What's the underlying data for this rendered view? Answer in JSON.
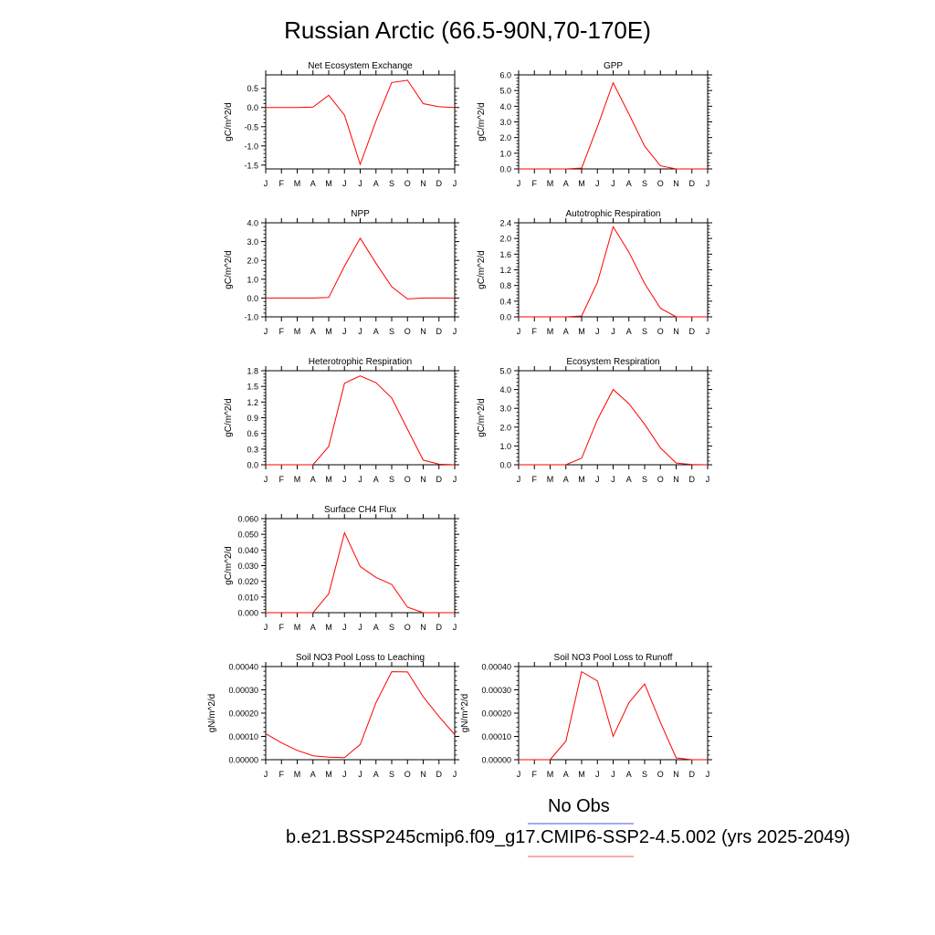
{
  "title": "Russian Arctic (66.5-90N,70-170E)",
  "legend": [
    {
      "label": "No Obs",
      "color": "#5050ff"
    },
    {
      "label": "b.e21.BSSP245cmip6.f09_g17.CMIP6-SSP2-4.5.002 (yrs 2025-2049)",
      "color": "#ff5050"
    }
  ],
  "series_color": "#ff0000",
  "month_labels": [
    "J",
    "F",
    "M",
    "A",
    "M",
    "J",
    "J",
    "A",
    "S",
    "O",
    "N",
    "D",
    "J"
  ],
  "chart_data": [
    {
      "type": "line",
      "title": "Net Ecosystem Exchange",
      "ylabel": "gC/m^2/d",
      "ylim": [
        -1.6,
        0.85
      ],
      "yticks": [
        -1.5,
        -1.0,
        -0.5,
        0.0,
        0.5
      ],
      "ytick_labels": [
        "-1.5",
        "-1.0",
        "-0.5",
        "0.0",
        "0.5"
      ],
      "values": [
        0.0,
        0.0,
        0.0,
        0.01,
        0.32,
        -0.2,
        -1.48,
        -0.35,
        0.65,
        0.71,
        0.1,
        0.02,
        0.0
      ]
    },
    {
      "type": "line",
      "title": "GPP",
      "ylabel": "gC/m^2/d",
      "ylim": [
        0.0,
        6.0
      ],
      "yticks": [
        0.0,
        1.0,
        2.0,
        3.0,
        4.0,
        5.0,
        6.0
      ],
      "ytick_labels": [
        "0.0",
        "1.0",
        "2.0",
        "3.0",
        "4.0",
        "5.0",
        "6.0"
      ],
      "values": [
        0.0,
        0.0,
        0.0,
        0.0,
        0.05,
        2.7,
        5.5,
        3.5,
        1.45,
        0.2,
        0.0,
        0.0,
        0.0
      ]
    },
    {
      "type": "line",
      "title": "NPP",
      "ylabel": "gC/m^2/d",
      "ylim": [
        -1.0,
        4.0
      ],
      "yticks": [
        -1.0,
        0.0,
        1.0,
        2.0,
        3.0,
        4.0
      ],
      "ytick_labels": [
        "-1.0",
        "0.0",
        "1.0",
        "2.0",
        "3.0",
        "4.0"
      ],
      "values": [
        0.0,
        0.0,
        0.0,
        0.0,
        0.03,
        1.7,
        3.18,
        1.85,
        0.6,
        -0.05,
        0.0,
        0.0,
        0.0
      ]
    },
    {
      "type": "line",
      "title": "Autotrophic Respiration",
      "ylabel": "gC/m^2/d",
      "ylim": [
        0.0,
        2.4
      ],
      "yticks": [
        0.0,
        0.4,
        0.8,
        1.2,
        1.6,
        2.0,
        2.4
      ],
      "ytick_labels": [
        "0.0",
        "0.4",
        "0.8",
        "1.2",
        "1.6",
        "2.0",
        "2.4"
      ],
      "values": [
        0.0,
        0.0,
        0.0,
        0.0,
        0.02,
        0.88,
        2.3,
        1.65,
        0.85,
        0.22,
        0.0,
        0.0,
        0.0
      ]
    },
    {
      "type": "line",
      "title": "Heterotrophic Respiration",
      "ylabel": "gC/m^2/d",
      "ylim": [
        0.0,
        1.8
      ],
      "yticks": [
        0.0,
        0.3,
        0.6,
        0.9,
        1.2,
        1.5,
        1.8
      ],
      "ytick_labels": [
        "0.0",
        "0.3",
        "0.6",
        "0.9",
        "1.2",
        "1.5",
        "1.8"
      ],
      "values": [
        0.0,
        0.0,
        0.0,
        0.0,
        0.35,
        1.56,
        1.7,
        1.57,
        1.28,
        0.68,
        0.09,
        0.01,
        0.0
      ]
    },
    {
      "type": "line",
      "title": "Ecosystem Respiration",
      "ylabel": "gC/m^2/d",
      "ylim": [
        0.0,
        5.0
      ],
      "yticks": [
        0.0,
        1.0,
        2.0,
        3.0,
        4.0,
        5.0
      ],
      "ytick_labels": [
        "0.0",
        "1.0",
        "2.0",
        "3.0",
        "4.0",
        "5.0"
      ],
      "values": [
        0.0,
        0.0,
        0.0,
        0.0,
        0.35,
        2.4,
        4.0,
        3.25,
        2.15,
        0.9,
        0.09,
        0.01,
        0.0
      ]
    },
    {
      "type": "line",
      "title": "Surface CH4 Flux",
      "ylabel": "gC/m^2/d",
      "ylim": [
        0.0,
        0.06
      ],
      "yticks": [
        0.0,
        0.01,
        0.02,
        0.03,
        0.04,
        0.05,
        0.06
      ],
      "ytick_labels": [
        "0.000",
        "0.010",
        "0.020",
        "0.030",
        "0.040",
        "0.050",
        "0.060"
      ],
      "values": [
        0.0,
        0.0,
        0.0,
        0.0,
        0.012,
        0.051,
        0.0295,
        0.0225,
        0.018,
        0.0035,
        0.0,
        0.0,
        0.0
      ]
    },
    {
      "type": "line",
      "title": "Soil NO3 Pool Loss to Leaching",
      "ylabel": "gN/m^2/d",
      "ylim": [
        0.0,
        0.0004
      ],
      "yticks": [
        0.0,
        0.0001,
        0.0002,
        0.0003,
        0.0004
      ],
      "ytick_labels": [
        "0.00000",
        "0.00010",
        "0.00020",
        "0.00030",
        "0.00040"
      ],
      "values": [
        0.000112,
        7.2e-05,
        4e-05,
        1.7e-05,
        1.1e-05,
        9e-06,
        6.5e-05,
        0.000245,
        0.000378,
        0.000377,
        0.00027,
        0.000185,
        0.000108
      ]
    },
    {
      "type": "line",
      "title": "Soil NO3 Pool Loss to Runoff",
      "ylabel": "gN/m^2/d",
      "ylim": [
        0.0,
        0.0004
      ],
      "yticks": [
        0.0,
        0.0001,
        0.0002,
        0.0003,
        0.0004
      ],
      "ytick_labels": [
        "0.00000",
        "0.00010",
        "0.00020",
        "0.00030",
        "0.00040"
      ],
      "values": [
        0.0,
        0.0,
        0.0,
        8e-05,
        0.000378,
        0.000338,
        0.0001,
        0.000245,
        0.000325,
        0.00016,
        8e-06,
        0.0,
        0.0
      ]
    }
  ]
}
